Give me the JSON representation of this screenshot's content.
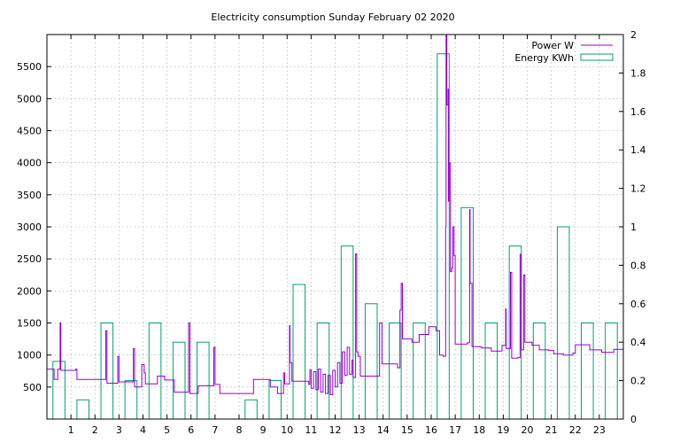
{
  "chart_data": {
    "type": "bar",
    "title": "Electricity consumption Sunday February 02 2020",
    "grid": true,
    "legend_position": "top-right",
    "x_ticks": [
      1,
      2,
      3,
      4,
      5,
      6,
      7,
      8,
      9,
      10,
      11,
      12,
      13,
      14,
      15,
      16,
      17,
      18,
      19,
      20,
      21,
      22,
      23
    ],
    "xlim": [
      0,
      24
    ],
    "y_left": {
      "ylim": [
        0,
        6000
      ],
      "ticks": [
        500,
        1000,
        1500,
        2000,
        2500,
        3000,
        3500,
        4000,
        4500,
        5000,
        5500
      ]
    },
    "y_right": {
      "ylim": [
        0,
        2
      ],
      "ticks": [
        "0",
        "0.2",
        "0.4",
        "0.6",
        "0.8",
        "1",
        "1.2",
        "1.4",
        "1.6",
        "1.8",
        "2"
      ]
    },
    "colors": {
      "power": "#9400d3",
      "energy": "#009e73",
      "grid": "#a0a0a0"
    },
    "series": [
      {
        "name": "Power W",
        "type": "line",
        "axis": "left",
        "points": [
          [
            0.0,
            780
          ],
          [
            0.3,
            620
          ],
          [
            0.45,
            780
          ],
          [
            0.55,
            1500
          ],
          [
            0.58,
            760
          ],
          [
            1.2,
            780
          ],
          [
            1.25,
            620
          ],
          [
            2.1,
            620
          ],
          [
            2.4,
            620
          ],
          [
            2.45,
            1380
          ],
          [
            2.5,
            560
          ],
          [
            2.9,
            560
          ],
          [
            2.95,
            980
          ],
          [
            3.0,
            580
          ],
          [
            3.5,
            580
          ],
          [
            3.6,
            1100
          ],
          [
            3.65,
            500
          ],
          [
            3.9,
            500
          ],
          [
            3.95,
            850
          ],
          [
            4.05,
            720
          ],
          [
            4.1,
            550
          ],
          [
            4.5,
            550
          ],
          [
            4.6,
            670
          ],
          [
            4.9,
            610
          ],
          [
            5.2,
            610
          ],
          [
            5.3,
            420
          ],
          [
            5.8,
            420
          ],
          [
            5.9,
            1500
          ],
          [
            5.95,
            400
          ],
          [
            6.3,
            520
          ],
          [
            6.9,
            520
          ],
          [
            6.95,
            1120
          ],
          [
            7.0,
            540
          ],
          [
            7.2,
            400
          ],
          [
            8.5,
            400
          ],
          [
            8.6,
            620
          ],
          [
            9.1,
            620
          ],
          [
            9.3,
            500
          ],
          [
            9.5,
            500
          ],
          [
            9.6,
            400
          ],
          [
            9.8,
            400
          ],
          [
            9.85,
            720
          ],
          [
            9.9,
            550
          ],
          [
            10.05,
            550
          ],
          [
            10.1,
            1460
          ],
          [
            10.12,
            880
          ],
          [
            10.2,
            590
          ],
          [
            10.8,
            590
          ],
          [
            10.9,
            540
          ],
          [
            10.95,
            770
          ],
          [
            11.0,
            480
          ],
          [
            11.1,
            740
          ],
          [
            11.2,
            460
          ],
          [
            11.3,
            780
          ],
          [
            11.4,
            420
          ],
          [
            11.5,
            700
          ],
          [
            11.6,
            400
          ],
          [
            11.7,
            680
          ],
          [
            11.8,
            380
          ],
          [
            11.9,
            760
          ],
          [
            12.0,
            500
          ],
          [
            12.1,
            880
          ],
          [
            12.2,
            560
          ],
          [
            12.3,
            1050
          ],
          [
            12.4,
            680
          ],
          [
            12.5,
            1120
          ],
          [
            12.6,
            700
          ],
          [
            12.7,
            920
          ],
          [
            12.75,
            650
          ],
          [
            12.85,
            2580
          ],
          [
            12.9,
            1050
          ],
          [
            12.95,
            980
          ],
          [
            13.05,
            670
          ],
          [
            13.8,
            670
          ],
          [
            13.85,
            1500
          ],
          [
            13.95,
            860
          ],
          [
            14.4,
            860
          ],
          [
            14.6,
            800
          ],
          [
            14.7,
            1700
          ],
          [
            14.75,
            2120
          ],
          [
            14.8,
            1250
          ],
          [
            15.2,
            1200
          ],
          [
            15.5,
            1320
          ],
          [
            15.9,
            1440
          ],
          [
            16.2,
            1380
          ],
          [
            16.35,
            1000
          ],
          [
            16.5,
            980
          ],
          [
            16.6,
            3000
          ],
          [
            16.62,
            6000
          ],
          [
            16.65,
            4900
          ],
          [
            16.7,
            5150
          ],
          [
            16.72,
            3400
          ],
          [
            16.75,
            4000
          ],
          [
            16.8,
            2300
          ],
          [
            16.85,
            2360
          ],
          [
            16.9,
            3000
          ],
          [
            16.95,
            2550
          ],
          [
            17.0,
            1170
          ],
          [
            17.5,
            1190
          ],
          [
            17.6,
            3270
          ],
          [
            17.62,
            2120
          ],
          [
            17.7,
            1130
          ],
          [
            18.1,
            1110
          ],
          [
            18.5,
            1060
          ],
          [
            18.9,
            1060
          ],
          [
            18.95,
            1150
          ],
          [
            19.1,
            1720
          ],
          [
            19.12,
            1100
          ],
          [
            19.3,
            2290
          ],
          [
            19.35,
            950
          ],
          [
            19.6,
            960
          ],
          [
            19.7,
            2570
          ],
          [
            19.75,
            1080
          ],
          [
            19.85,
            2250
          ],
          [
            19.9,
            1200
          ],
          [
            20.2,
            1150
          ],
          [
            20.5,
            1080
          ],
          [
            20.9,
            1070
          ],
          [
            21.1,
            1020
          ],
          [
            21.5,
            1000
          ],
          [
            21.9,
            1030
          ],
          [
            22.0,
            1160
          ],
          [
            22.5,
            1160
          ],
          [
            22.6,
            1080
          ],
          [
            23.0,
            1080
          ],
          [
            23.1,
            1040
          ],
          [
            23.5,
            1040
          ],
          [
            23.6,
            1090
          ],
          [
            24.0,
            1090
          ]
        ]
      },
      {
        "name": "Energy KWh",
        "type": "bar",
        "axis": "right",
        "bin_width": 1,
        "hours": [
          0,
          1,
          2,
          3,
          4,
          5,
          6,
          7,
          8,
          9,
          10,
          11,
          12,
          13,
          14,
          15,
          16,
          17,
          18,
          19,
          20,
          21,
          22,
          23
        ],
        "values": [
          0.3,
          0.1,
          0.5,
          0.2,
          0.5,
          0.4,
          0.4,
          0.0,
          0.1,
          0.2,
          0.7,
          0.5,
          0.9,
          0.6,
          0.5,
          0.5,
          1.9,
          1.1,
          0.5,
          0.9,
          0.5,
          1.0,
          0.5,
          0.5
        ]
      }
    ]
  }
}
